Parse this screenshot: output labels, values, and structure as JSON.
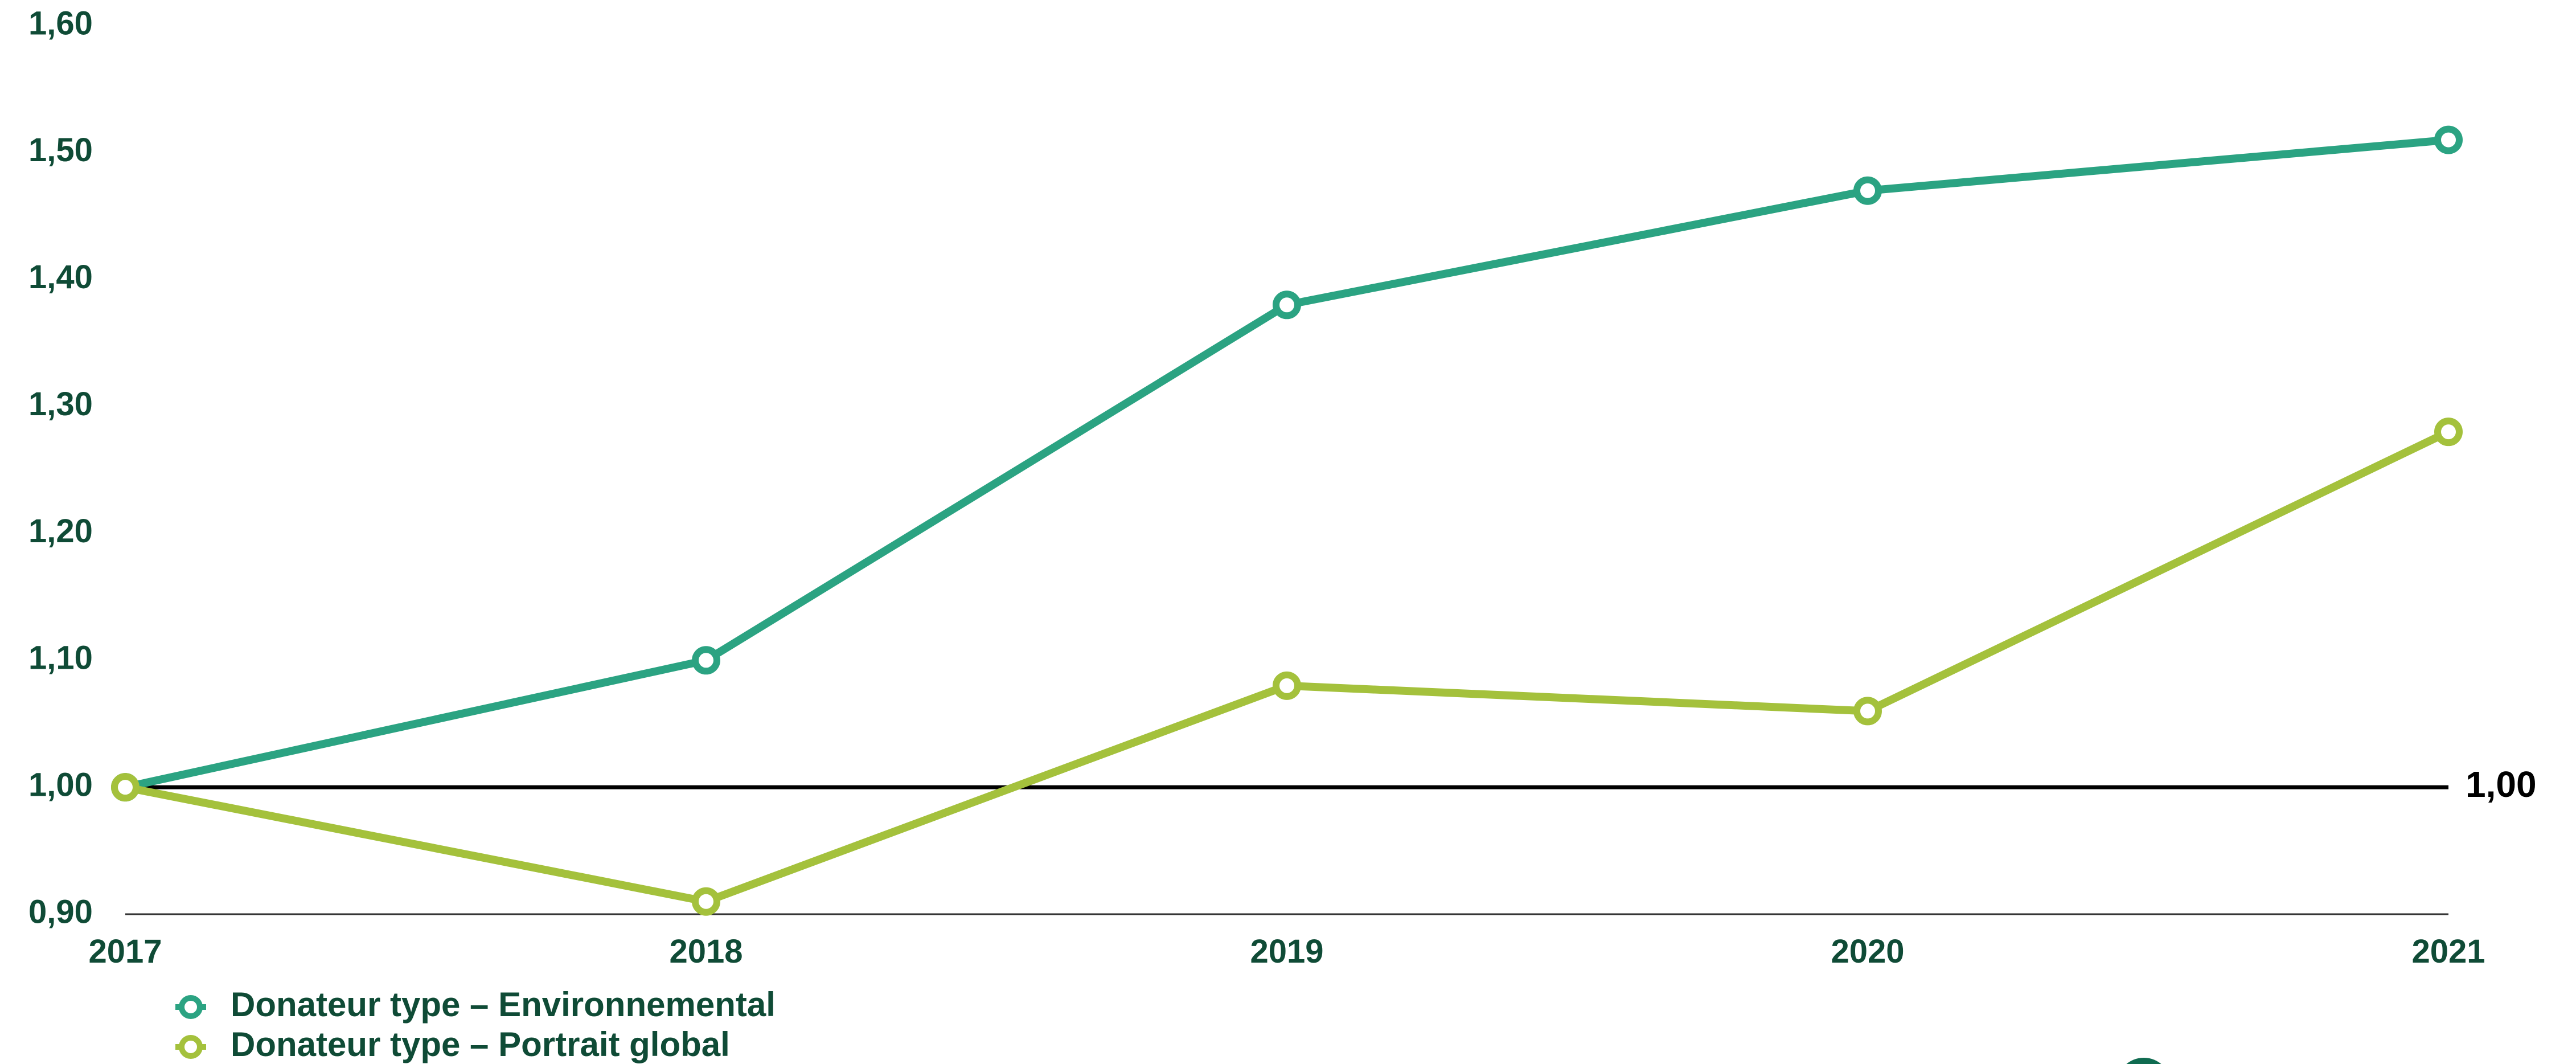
{
  "chart_data": {
    "type": "line",
    "x": [
      "2017",
      "2018",
      "2019",
      "2020",
      "2021"
    ],
    "series": [
      {
        "name": "Donateur type – Environnemental",
        "values": [
          1.0,
          1.1,
          1.38,
          1.47,
          1.51
        ],
        "color": "#2ba382"
      },
      {
        "name": "Donateur type – Portrait global",
        "values": [
          1.0,
          0.91,
          1.08,
          1.06,
          1.28
        ],
        "color": "#a4c13c"
      }
    ],
    "ylim": [
      0.9,
      1.6
    ],
    "yticks": [
      "1,60",
      "1,50",
      "1,40",
      "1,30",
      "1,20",
      "1,10",
      "1,00",
      "0,90"
    ],
    "ytick_values": [
      1.6,
      1.5,
      1.4,
      1.3,
      1.2,
      1.1,
      1.0,
      0.9
    ],
    "reference_line": {
      "value": 1.0,
      "label": "1,00",
      "color": "#000000"
    },
    "text_color": "#0f4b36",
    "grid": false,
    "legend_position": "bottom-left",
    "title": "",
    "xlabel": "",
    "ylabel": ""
  }
}
